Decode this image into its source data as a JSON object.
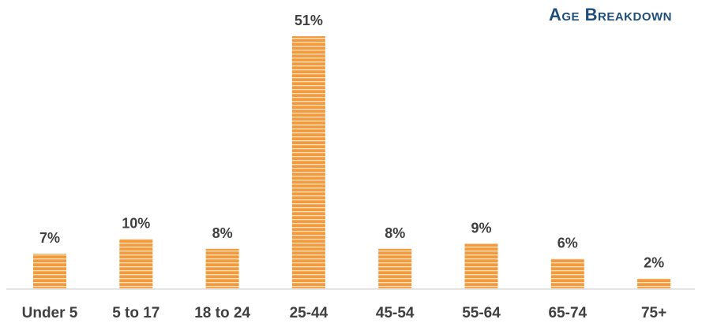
{
  "chart_data": {
    "type": "bar",
    "title": "Age Breakdown",
    "xlabel": "",
    "ylabel": "",
    "categories": [
      "Under 5",
      "5 to 17",
      "18 to 24",
      "25-44",
      "45-54",
      "55-64",
      "65-74",
      "75+"
    ],
    "values": [
      7,
      10,
      8,
      51,
      8,
      9,
      6,
      2
    ],
    "data_labels": [
      "7%",
      "10%",
      "8%",
      "51%",
      "8%",
      "9%",
      "6%",
      "2%"
    ],
    "ylim": [
      0,
      51
    ],
    "grid": false,
    "legend": "none"
  },
  "colors": {
    "bar": "#f39a3d",
    "bar_stripe": "#fde3c6",
    "title": "#1f4e79",
    "label": "#404040",
    "axis": "#c8c8c8"
  }
}
